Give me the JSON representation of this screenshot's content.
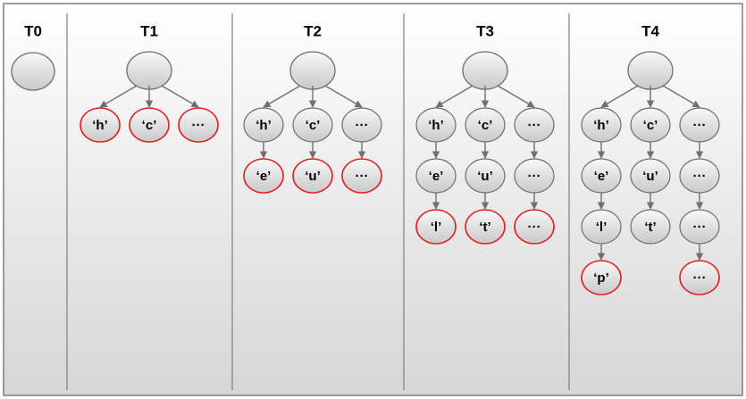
{
  "columns": [
    {
      "id": "t0",
      "label": "T0",
      "root": true,
      "branches": []
    },
    {
      "id": "t1",
      "label": "T1",
      "root": true,
      "branches": [
        {
          "nodes": [
            {
              "label": "‘h’",
              "state": "new"
            }
          ]
        },
        {
          "nodes": [
            {
              "label": "‘c’",
              "state": "new"
            }
          ]
        },
        {
          "nodes": [
            {
              "label": "···",
              "state": "new"
            }
          ]
        }
      ]
    },
    {
      "id": "t2",
      "label": "T2",
      "root": true,
      "branches": [
        {
          "nodes": [
            {
              "label": "‘h’",
              "state": "existing"
            },
            {
              "label": "‘e’",
              "state": "new"
            }
          ]
        },
        {
          "nodes": [
            {
              "label": "‘c’",
              "state": "existing"
            },
            {
              "label": "‘u’",
              "state": "new"
            }
          ]
        },
        {
          "nodes": [
            {
              "label": "···",
              "state": "existing"
            },
            {
              "label": "···",
              "state": "new"
            }
          ]
        }
      ]
    },
    {
      "id": "t3",
      "label": "T3",
      "root": true,
      "branches": [
        {
          "nodes": [
            {
              "label": "‘h’",
              "state": "existing"
            },
            {
              "label": "‘e’",
              "state": "existing"
            },
            {
              "label": "‘l’",
              "state": "new"
            }
          ]
        },
        {
          "nodes": [
            {
              "label": "‘c’",
              "state": "existing"
            },
            {
              "label": "‘u’",
              "state": "existing"
            },
            {
              "label": "‘t’",
              "state": "new"
            }
          ]
        },
        {
          "nodes": [
            {
              "label": "···",
              "state": "existing"
            },
            {
              "label": "···",
              "state": "existing"
            },
            {
              "label": "···",
              "state": "new"
            }
          ]
        }
      ]
    },
    {
      "id": "t4",
      "label": "T4",
      "root": true,
      "branches": [
        {
          "nodes": [
            {
              "label": "‘h’",
              "state": "existing"
            },
            {
              "label": "‘e’",
              "state": "existing"
            },
            {
              "label": "‘l’",
              "state": "existing"
            },
            {
              "label": "‘p’",
              "state": "new"
            }
          ]
        },
        {
          "nodes": [
            {
              "label": "‘c’",
              "state": "existing"
            },
            {
              "label": "‘u’",
              "state": "existing"
            },
            {
              "label": "‘t’",
              "state": "existing"
            }
          ]
        },
        {
          "nodes": [
            {
              "label": "···",
              "state": "existing"
            },
            {
              "label": "···",
              "state": "existing"
            },
            {
              "label": "···",
              "state": "existing"
            },
            {
              "label": "···",
              "state": "new"
            }
          ]
        }
      ]
    }
  ],
  "colors": {
    "background_top": "#ffffff",
    "background_bottom": "#d6d6d6",
    "border": "#7f7f7f",
    "divider": "#7f7f7f",
    "node_fill_top": "#f8f8f8",
    "node_fill_bottom": "#c9c9c9",
    "node_stroke_existing": "#6e6e6e",
    "node_stroke_new": "#e02020",
    "arrow": "#707070",
    "text": "#000000"
  }
}
